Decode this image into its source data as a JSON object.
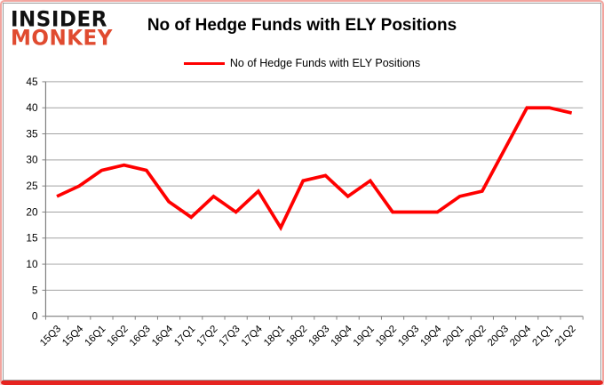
{
  "logo": {
    "line1": "INSIDER",
    "line2": "MONKEY"
  },
  "header": {
    "title": "No of Hedge Funds with ELY Positions"
  },
  "legend": {
    "label": "No of Hedge Funds with ELY Positions",
    "line_color": "#FF0000"
  },
  "chart_data": {
    "type": "line",
    "title": "No of Hedge Funds with ELY Positions",
    "categories": [
      "15Q3",
      "15Q4",
      "16Q1",
      "16Q2",
      "16Q3",
      "16Q4",
      "17Q1",
      "17Q2",
      "17Q3",
      "17Q4",
      "18Q1",
      "18Q2",
      "18Q3",
      "18Q4",
      "19Q1",
      "19Q2",
      "19Q3",
      "19Q4",
      "20Q1",
      "20Q2",
      "20Q3",
      "20Q4",
      "21Q1",
      "21Q2"
    ],
    "series": [
      {
        "name": "No of Hedge Funds with ELY Positions",
        "color": "#FF0000",
        "values": [
          23,
          25,
          28,
          29,
          28,
          22,
          19,
          23,
          20,
          24,
          17,
          26,
          27,
          23,
          26,
          20,
          20,
          20,
          23,
          24,
          32,
          40,
          40,
          39
        ]
      }
    ],
    "ylim": [
      0,
      45
    ],
    "ytick_step": 5,
    "grid": true,
    "legend_position": "top",
    "colors": {
      "gridline": "#a3a3a3",
      "axis": "#7f7f7f",
      "tick": "#7f7f7f"
    }
  }
}
